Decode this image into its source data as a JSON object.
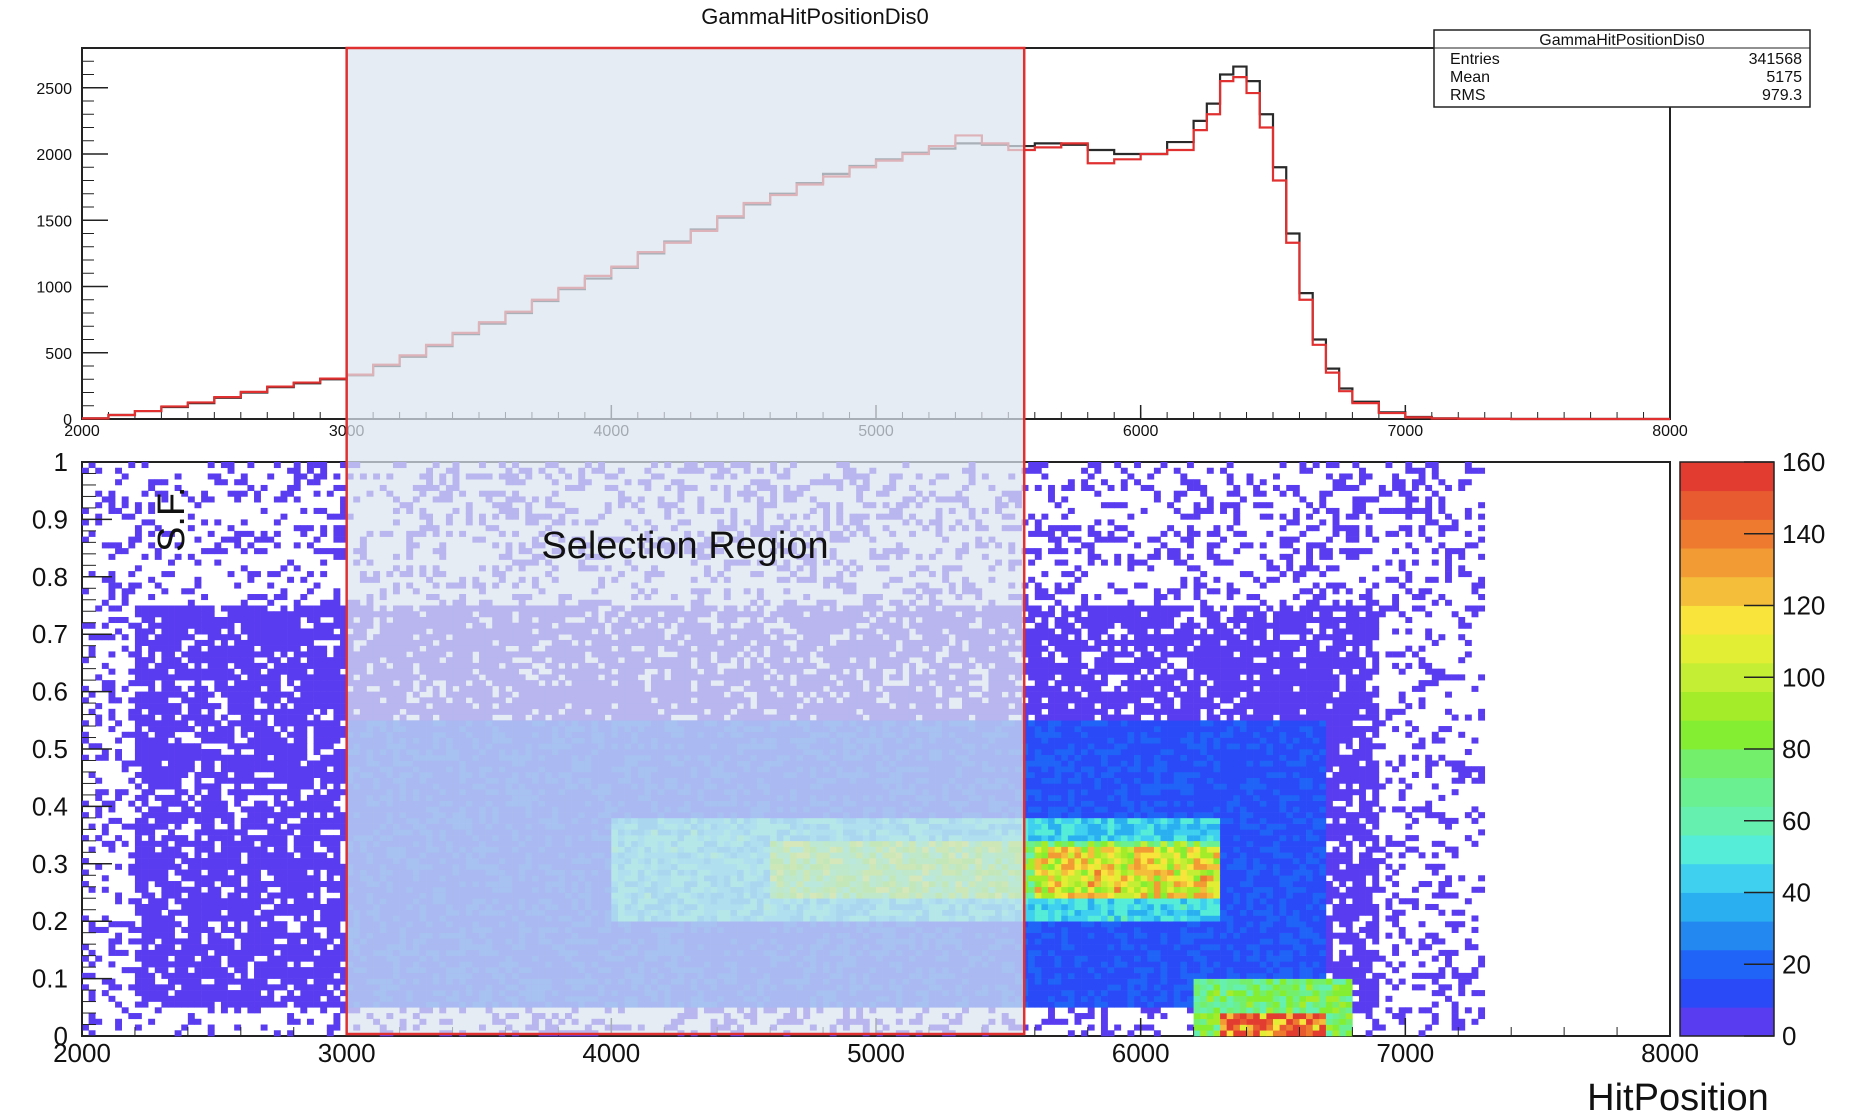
{
  "chart_data": [
    {
      "type": "line",
      "title": "GammaHitPositionDis0",
      "xlim": [
        2000,
        8000
      ],
      "ylim": [
        0,
        2800
      ],
      "x_ticks": [
        "2000",
        "3000",
        "4000",
        "5000",
        "6000",
        "7000",
        "8000"
      ],
      "y_ticks": [
        "0",
        "500",
        "1000",
        "1500",
        "2000",
        "2500"
      ],
      "stats": {
        "title": "GammaHitPositionDis0",
        "rows": [
          {
            "label": "Entries",
            "value": "341568"
          },
          {
            "label": "Mean",
            "value": "5175"
          },
          {
            "label": "RMS",
            "value": "979.3"
          }
        ]
      },
      "series": [
        {
          "color": "#2a2a2a",
          "x": [
            2000,
            2100,
            2200,
            2300,
            2400,
            2500,
            2600,
            2700,
            2800,
            2900,
            3000,
            3100,
            3200,
            3300,
            3400,
            3500,
            3600,
            3700,
            3800,
            3900,
            4000,
            4100,
            4200,
            4300,
            4400,
            4500,
            4600,
            4700,
            4800,
            4900,
            5000,
            5100,
            5200,
            5300,
            5400,
            5500,
            5600,
            5700,
            5800,
            5900,
            6000,
            6100,
            6200,
            6250,
            6300,
            6350,
            6400,
            6450,
            6500,
            6550,
            6600,
            6650,
            6700,
            6750,
            6800,
            6900,
            7000,
            7100,
            7200,
            7300,
            7400,
            8000
          ],
          "y": [
            5,
            30,
            60,
            90,
            120,
            160,
            200,
            240,
            270,
            300,
            330,
            400,
            470,
            550,
            640,
            720,
            800,
            890,
            980,
            1060,
            1140,
            1250,
            1340,
            1430,
            1520,
            1620,
            1700,
            1780,
            1850,
            1910,
            1960,
            2010,
            2040,
            2080,
            2070,
            2060,
            2080,
            2070,
            2030,
            2000,
            2000,
            2090,
            2250,
            2380,
            2600,
            2660,
            2550,
            2300,
            1900,
            1400,
            950,
            600,
            380,
            230,
            130,
            50,
            15,
            5,
            2,
            1,
            0,
            0
          ]
        },
        {
          "color": "#e03030",
          "x": [
            2000,
            2100,
            2200,
            2300,
            2400,
            2500,
            2600,
            2700,
            2800,
            2900,
            3000,
            3100,
            3200,
            3300,
            3400,
            3500,
            3600,
            3700,
            3800,
            3900,
            4000,
            4100,
            4200,
            4300,
            4400,
            4500,
            4600,
            4700,
            4800,
            4900,
            5000,
            5100,
            5200,
            5300,
            5400,
            5500,
            5600,
            5700,
            5800,
            5900,
            6000,
            6100,
            6200,
            6250,
            6300,
            6350,
            6400,
            6450,
            6500,
            6550,
            6600,
            6650,
            6700,
            6750,
            6800,
            6900,
            7000,
            7100,
            7200,
            7300,
            7400,
            8000
          ],
          "y": [
            5,
            30,
            60,
            95,
            125,
            165,
            205,
            245,
            275,
            305,
            335,
            410,
            480,
            560,
            650,
            730,
            810,
            900,
            990,
            1080,
            1150,
            1260,
            1330,
            1420,
            1530,
            1630,
            1690,
            1770,
            1830,
            1900,
            1950,
            2000,
            2060,
            2140,
            2080,
            2030,
            2050,
            2080,
            1930,
            1960,
            2000,
            2030,
            2180,
            2300,
            2550,
            2580,
            2460,
            2200,
            1800,
            1330,
            900,
            560,
            350,
            210,
            120,
            45,
            12,
            4,
            2,
            1,
            0,
            0
          ]
        }
      ]
    },
    {
      "type": "heatmap",
      "xlabel": "HitPosition",
      "ylabel": "S.F.",
      "xlim": [
        2000,
        8000
      ],
      "ylim": [
        0,
        1
      ],
      "x_ticks": [
        "2000",
        "3000",
        "4000",
        "5000",
        "6000",
        "7000",
        "8000"
      ],
      "y_ticks": [
        "0",
        "0.1",
        "0.2",
        "0.3",
        "0.4",
        "0.5",
        "0.6",
        "0.7",
        "0.8",
        "0.9",
        "1"
      ],
      "colorbar": {
        "min": 0,
        "max": 160,
        "ticks": [
          "0",
          "20",
          "40",
          "60",
          "80",
          "100",
          "120",
          "140",
          "160"
        ],
        "colors": [
          "#5a3cf0",
          "#2a4af8",
          "#1f64f7",
          "#2388f0",
          "#2ab0f0",
          "#3fd0f0",
          "#55ecd8",
          "#66f0b0",
          "#6af090",
          "#74ef6c",
          "#84ee33",
          "#a4ec2a",
          "#c4ee33",
          "#e2ee33",
          "#f8e43a",
          "#f4bd3a",
          "#f29a34",
          "#ee7a30",
          "#e85a30",
          "#e23c30"
        ]
      },
      "density_regions": [
        {
          "x": [
            2000,
            7300
          ],
          "y": [
            0.0,
            1.0
          ],
          "level": 1
        },
        {
          "x": [
            2200,
            6900
          ],
          "y": [
            0.05,
            0.75
          ],
          "level": 6
        },
        {
          "x": [
            3000,
            6700
          ],
          "y": [
            0.05,
            0.55
          ],
          "level": 15
        },
        {
          "x": [
            4000,
            6300
          ],
          "y": [
            0.2,
            0.38
          ],
          "level": 45
        },
        {
          "x": [
            4600,
            6300
          ],
          "y": [
            0.24,
            0.34
          ],
          "level": 80
        },
        {
          "x": [
            5600,
            6300
          ],
          "y": [
            0.24,
            0.33
          ],
          "level": 110
        },
        {
          "x": [
            6200,
            6800
          ],
          "y": [
            0.0,
            0.1
          ],
          "level": 75
        },
        {
          "x": [
            6300,
            6700
          ],
          "y": [
            0.0,
            0.04
          ],
          "level": 145
        }
      ],
      "annotations": [
        {
          "text": "Selection Region",
          "x": 4500,
          "y": 0.86
        },
        {
          "type": "selection-box",
          "x": [
            3000,
            5560
          ]
        }
      ]
    }
  ],
  "colors": {
    "selection_fill": "#dde4ee",
    "selection_edge": "#e03030"
  }
}
